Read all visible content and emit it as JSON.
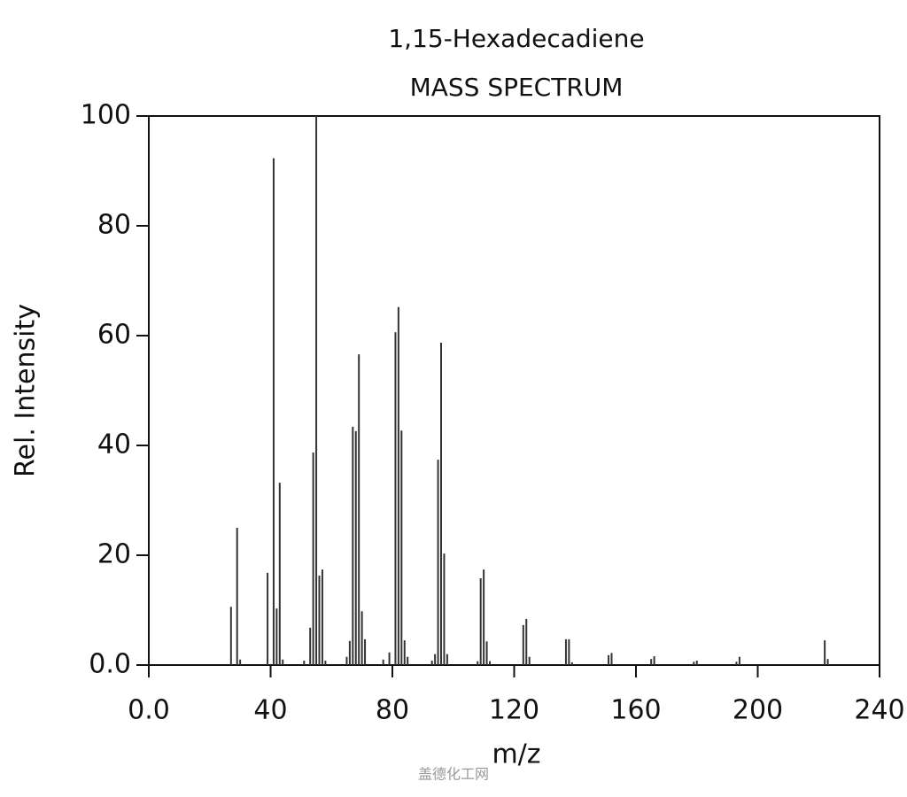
{
  "chart_data": {
    "type": "stem",
    "title": "1,15-Hexadecadiene",
    "subtitle": "MASS SPECTRUM",
    "x_label": "m/z",
    "y_label": "Rel. Intensity",
    "watermark": "盖德化工网",
    "color": "#333333",
    "x": [
      27,
      29,
      30,
      39,
      41,
      42,
      43,
      44,
      51,
      53,
      54,
      55,
      56,
      57,
      58,
      65,
      66,
      67,
      68,
      69,
      70,
      71,
      77,
      79,
      81,
      82,
      83,
      84,
      85,
      93,
      94,
      95,
      96,
      97,
      98,
      108,
      109,
      110,
      111,
      112,
      123,
      124,
      125,
      137,
      138,
      139,
      151,
      152,
      165,
      166,
      179,
      180,
      193,
      194,
      222,
      223
    ],
    "values": [
      10.6,
      25,
      1,
      16.8,
      92.3,
      10.3,
      33.2,
      1,
      0.8,
      6.8,
      38.7,
      100,
      16.3,
      17.4,
      0.8,
      1.5,
      4.4,
      43.4,
      42.6,
      56.6,
      9.8,
      4.7,
      1,
      2.3,
      60.6,
      65.2,
      42.7,
      4.5,
      1.5,
      0.8,
      2,
      37.4,
      58.7,
      20.3,
      2,
      0.7,
      15.8,
      17.4,
      4.3,
      0.7,
      7.3,
      8.4,
      1.5,
      4.7,
      4.7,
      0.5,
      1.8,
      2.2,
      1.1,
      1.6,
      0.6,
      0.8,
      0.6,
      1.5,
      4.5,
      1.1
    ],
    "xlim": [
      0,
      240
    ],
    "xticks": [
      {
        "value": 0,
        "label": "0.0"
      },
      40,
      80,
      120,
      160,
      200,
      240
    ],
    "ylim": [
      0,
      100
    ],
    "yticks": [
      {
        "value": 0,
        "label": "0.0"
      },
      20,
      40,
      60,
      80,
      100
    ]
  }
}
